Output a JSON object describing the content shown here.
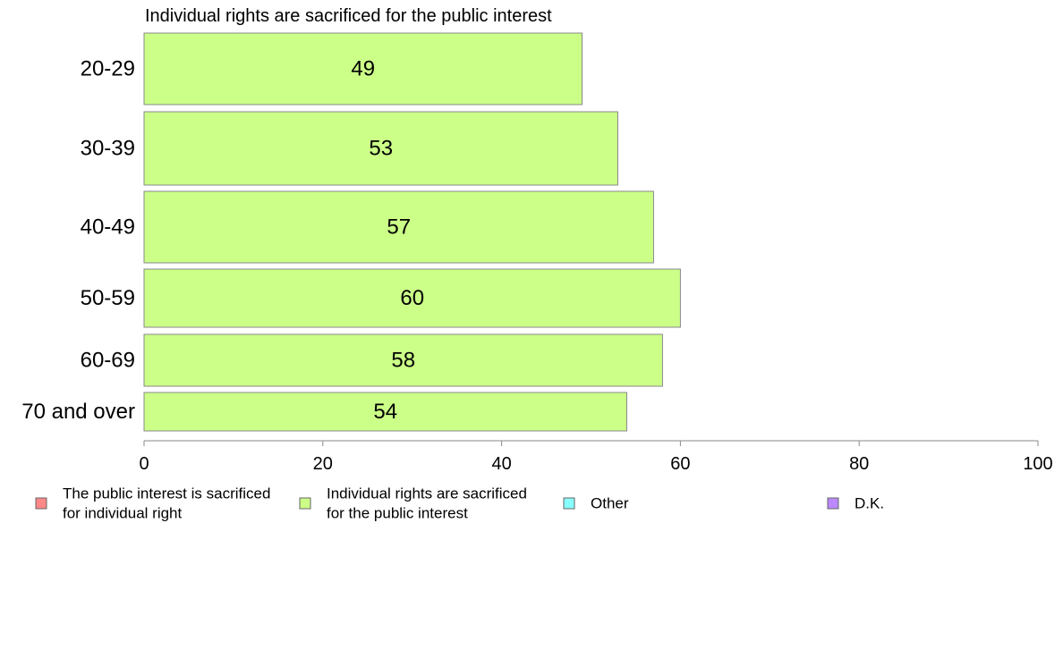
{
  "chart_data": {
    "type": "bar",
    "orientation": "horizontal",
    "title": "Individual rights are sacrificed for the public interest",
    "categories": [
      "20-29",
      "30-39",
      "40-49",
      "50-59",
      "60-69",
      "70 and over"
    ],
    "series": [
      {
        "name": "Individual rights are sacrificed for the public interest",
        "values": [
          49,
          53,
          57,
          60,
          58,
          54
        ],
        "color": "#ccff88"
      }
    ],
    "data_labels": [
      "49",
      "53",
      "57",
      "60",
      "58",
      "54"
    ],
    "xlim": [
      0,
      100
    ],
    "x_ticks": [
      "0",
      "20",
      "40",
      "60",
      "80",
      "100"
    ],
    "grid": false,
    "legend_position": "bottom",
    "legend": [
      {
        "label_lines": [
          "The public interest is sacrificed",
          "for individual right"
        ],
        "color": "#ff8888"
      },
      {
        "label_lines": [
          "Individual rights are sacrificed",
          "for the public interest"
        ],
        "color": "#ccff88"
      },
      {
        "label_lines": [
          "Other"
        ],
        "color": "#88ffff"
      },
      {
        "label_lines": [
          "D.K."
        ],
        "color": "#bb88ff"
      }
    ],
    "bar_border_color": "#888888",
    "axis_color": "#888888"
  }
}
